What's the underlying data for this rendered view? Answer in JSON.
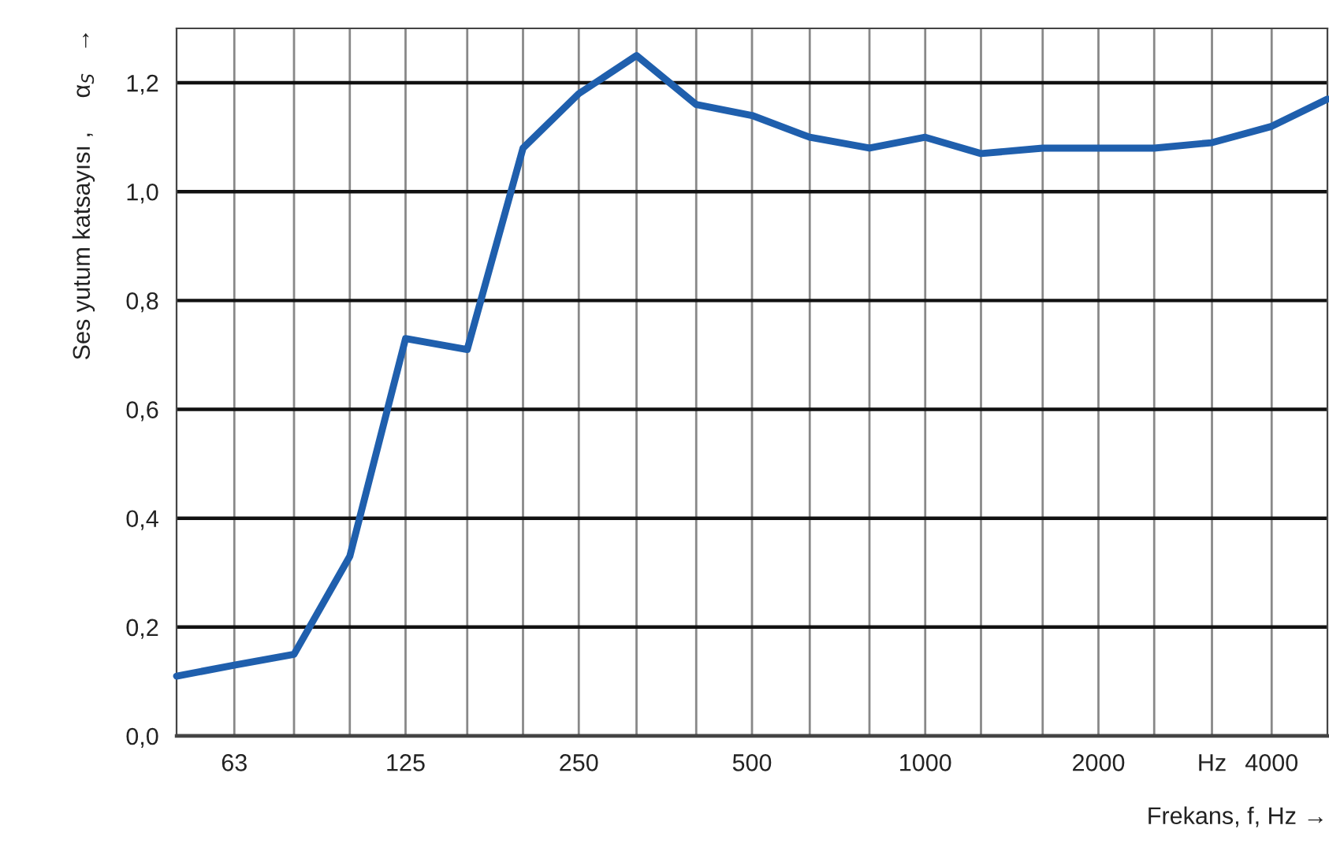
{
  "chart_data": {
    "type": "line",
    "xlabel": "Frekans, f, Hz →",
    "ylabel": "Ses yutum katsayısı ,     α$_{S}$   →",
    "x": [
      50,
      63,
      80,
      100,
      125,
      160,
      200,
      250,
      315,
      400,
      500,
      630,
      800,
      1000,
      1250,
      1600,
      2000,
      2500,
      3150,
      4000,
      5000
    ],
    "series": [
      {
        "color": "#1f5fad",
        "values": [
          0.11,
          0.13,
          0.15,
          0.33,
          0.73,
          0.71,
          1.08,
          1.18,
          1.25,
          1.16,
          1.14,
          1.1,
          1.08,
          1.1,
          1.07,
          1.08,
          1.08,
          1.08,
          1.09,
          1.12,
          1.17
        ]
      }
    ],
    "log": "x",
    "xlim": [
      50,
      5000
    ],
    "xticks": [
      63,
      {
        "value": 80,
        "label": null
      },
      {
        "value": 100,
        "label": null
      },
      125,
      {
        "value": 160,
        "label": null
      },
      {
        "value": 200,
        "label": null
      },
      250,
      {
        "value": 315,
        "label": null
      },
      {
        "value": 400,
        "label": null
      },
      500,
      {
        "value": 630,
        "label": null
      },
      {
        "value": 800,
        "label": null
      },
      1000,
      {
        "value": 1250,
        "label": null
      },
      {
        "value": 1600,
        "label": null
      },
      2000,
      {
        "value": 2500,
        "label": null
      },
      {
        "value": 3150,
        "label": "Hz"
      },
      4000
    ],
    "ylim": [
      0,
      1.3
    ],
    "yticks": [
      {
        "value": 0,
        "label": "0,0"
      },
      {
        "value": 0.2,
        "label": "0,2"
      },
      {
        "value": 0.4,
        "label": "0,4"
      },
      {
        "value": 0.6,
        "label": "0,6"
      },
      {
        "value": 0.8,
        "label": "0,8"
      },
      {
        "value": 1.0,
        "label": "1,0"
      },
      {
        "value": 1.2,
        "label": "1,2"
      }
    ],
    "grid": true,
    "marker": "none",
    "line_style": "solid"
  }
}
